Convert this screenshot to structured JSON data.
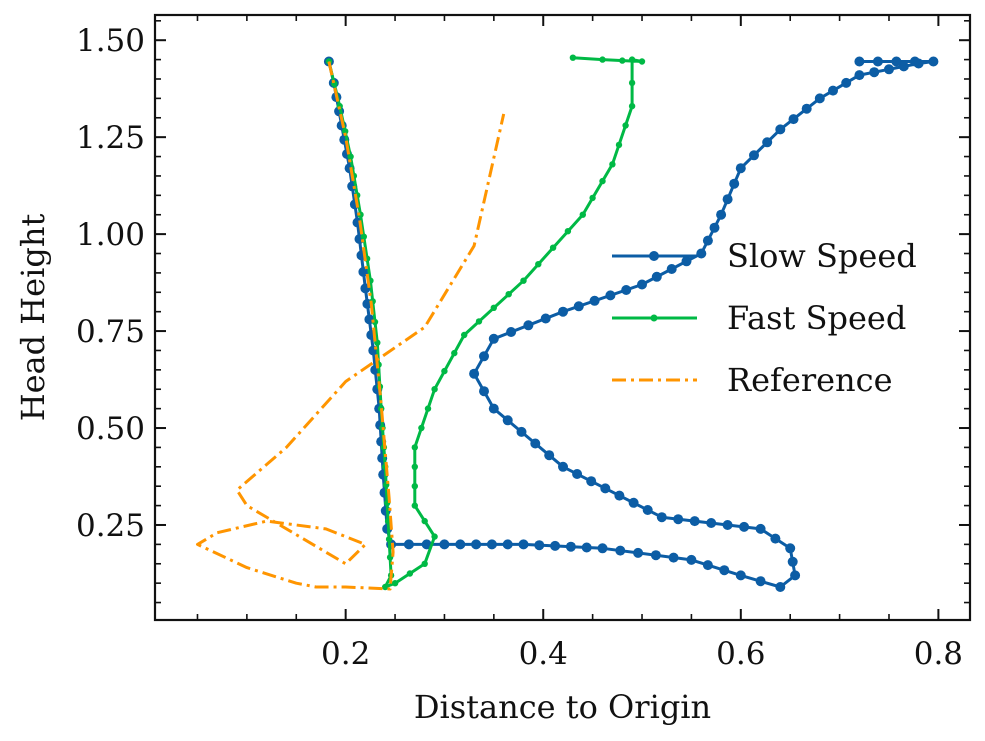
{
  "chart_data": {
    "type": "line",
    "title": "",
    "xlabel": "Distance to Origin",
    "ylabel": "Head Height",
    "xlim": [
      0.007,
      0.832
    ],
    "ylim": [
      0.005,
      1.565
    ],
    "x_ticks": [
      0.2,
      0.4,
      0.6,
      0.8
    ],
    "x_tick_labels": [
      "0.2",
      "0.4",
      "0.6",
      "0.8"
    ],
    "y_ticks": [
      0.25,
      0.5,
      0.75,
      1.0,
      1.25,
      1.5
    ],
    "y_tick_labels": [
      "0.25",
      "0.50",
      "0.75",
      "1.00",
      "1.25",
      "1.50"
    ],
    "grid": false,
    "legend": "center-right",
    "series": [
      {
        "name": "Slow Speed",
        "color": "#0c5da5",
        "linestyle": "solid",
        "marker": "circle",
        "points": [
          [
            0.183,
            1.445
          ],
          [
            0.188,
            1.39
          ],
          [
            0.196,
            1.28
          ],
          [
            0.204,
            1.17
          ],
          [
            0.212,
            1.03
          ],
          [
            0.22,
            0.86
          ],
          [
            0.228,
            0.7
          ],
          [
            0.234,
            0.55
          ],
          [
            0.238,
            0.38
          ],
          [
            0.242,
            0.24
          ],
          [
            0.246,
            0.2
          ],
          [
            0.3,
            0.2
          ],
          [
            0.38,
            0.2
          ],
          [
            0.46,
            0.19
          ],
          [
            0.55,
            0.16
          ],
          [
            0.6,
            0.12
          ],
          [
            0.64,
            0.09
          ],
          [
            0.655,
            0.12
          ],
          [
            0.65,
            0.19
          ],
          [
            0.62,
            0.24
          ],
          [
            0.52,
            0.27
          ],
          [
            0.42,
            0.4
          ],
          [
            0.35,
            0.55
          ],
          [
            0.33,
            0.64
          ],
          [
            0.35,
            0.73
          ],
          [
            0.42,
            0.8
          ],
          [
            0.5,
            0.87
          ],
          [
            0.56,
            0.95
          ],
          [
            0.58,
            1.05
          ],
          [
            0.6,
            1.17
          ],
          [
            0.64,
            1.27
          ],
          [
            0.68,
            1.35
          ],
          [
            0.72,
            1.41
          ],
          [
            0.78,
            1.44
          ],
          [
            0.795,
            1.445
          ],
          [
            0.72,
            1.445
          ]
        ]
      },
      {
        "name": "Fast Speed",
        "color": "#00b945",
        "linestyle": "solid",
        "marker": "circle",
        "points": [
          [
            0.183,
            1.445
          ],
          [
            0.194,
            1.33
          ],
          [
            0.205,
            1.2
          ],
          [
            0.215,
            1.05
          ],
          [
            0.225,
            0.88
          ],
          [
            0.232,
            0.72
          ],
          [
            0.236,
            0.55
          ],
          [
            0.24,
            0.4
          ],
          [
            0.243,
            0.26
          ],
          [
            0.246,
            0.12
          ],
          [
            0.24,
            0.09
          ],
          [
            0.25,
            0.1
          ],
          [
            0.28,
            0.15
          ],
          [
            0.29,
            0.22
          ],
          [
            0.27,
            0.3
          ],
          [
            0.27,
            0.45
          ],
          [
            0.29,
            0.6
          ],
          [
            0.32,
            0.74
          ],
          [
            0.38,
            0.88
          ],
          [
            0.44,
            1.05
          ],
          [
            0.47,
            1.18
          ],
          [
            0.49,
            1.33
          ],
          [
            0.49,
            1.45
          ],
          [
            0.5,
            1.445
          ],
          [
            0.46,
            1.45
          ],
          [
            0.43,
            1.455
          ]
        ]
      },
      {
        "name": "Reference",
        "color": "#ff9500",
        "linestyle": "dashdot",
        "marker": "none",
        "points": [
          [
            0.183,
            1.445
          ],
          [
            0.2,
            1.25
          ],
          [
            0.214,
            1.04
          ],
          [
            0.226,
            0.82
          ],
          [
            0.236,
            0.56
          ],
          [
            0.244,
            0.32
          ],
          [
            0.248,
            0.18
          ],
          [
            0.245,
            0.085
          ],
          [
            0.2,
            0.09
          ],
          [
            0.17,
            0.09
          ],
          [
            0.15,
            0.1
          ],
          [
            0.1,
            0.14
          ],
          [
            0.05,
            0.2
          ],
          [
            0.07,
            0.23
          ],
          [
            0.12,
            0.26
          ],
          [
            0.18,
            0.24
          ],
          [
            0.22,
            0.2
          ],
          [
            0.2,
            0.15
          ],
          [
            0.1,
            0.3
          ],
          [
            0.09,
            0.34
          ],
          [
            0.14,
            0.45
          ],
          [
            0.2,
            0.62
          ],
          [
            0.28,
            0.76
          ],
          [
            0.33,
            0.97
          ],
          [
            0.36,
            1.31
          ]
        ]
      }
    ]
  }
}
